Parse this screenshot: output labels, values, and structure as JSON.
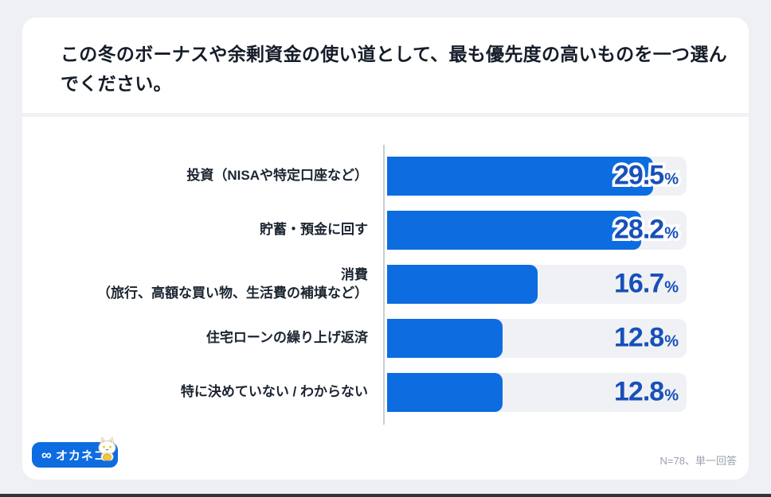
{
  "page": {
    "background_color": "#eef0f3",
    "bottom_edge_color": "#30353b"
  },
  "card": {
    "title": "この冬のボーナスや余剰資金の使い道として、最も優先度の高いものを一つ選んでください。",
    "footer_note": "N=78、単一回答",
    "logo": {
      "infinity_mark": "∞",
      "brand_name": "オカネコ",
      "background_color": "#0d6ce0",
      "mascot": "cat-with-gold-coin"
    }
  },
  "chart_data": {
    "type": "bar",
    "orientation": "horizontal",
    "title": "この冬のボーナスや余剰資金の使い道として、最も優先度の高いものを一つ選んでください。",
    "categories": [
      "投資（NISAや特定口座など）",
      "貯蓄・預金に回す",
      "消費",
      "住宅ローンの繰り上げ返済",
      "特に決めていない / わからない"
    ],
    "sublabels": [
      "",
      "",
      "（旅行、高額な買い物、生活費の補填など）",
      "",
      ""
    ],
    "values": [
      29.5,
      28.2,
      16.7,
      12.8,
      12.8
    ],
    "value_labels": [
      "29.5",
      "28.2",
      "16.7",
      "12.8",
      "12.8"
    ],
    "percent_suffix": "%",
    "xlim": [
      0,
      33.2
    ],
    "grid": false,
    "legend": false,
    "sample_note": "N=78、単一回答",
    "bar_color": "#0d6ce0",
    "track_color": "#eff1f4",
    "value_color": "#1850ba"
  }
}
